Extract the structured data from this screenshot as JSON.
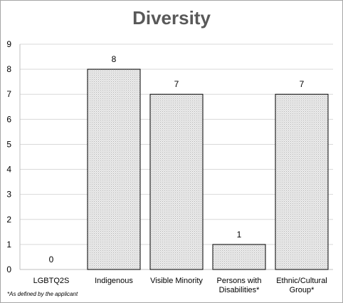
{
  "chart_data": {
    "type": "bar",
    "title": "Diversity",
    "categories": [
      [
        "LGBTQ2S"
      ],
      [
        "Indigenous"
      ],
      [
        "Visible Minority"
      ],
      [
        "Persons with",
        "Disabilities*"
      ],
      [
        "Ethnic/Cultural",
        "Group*"
      ]
    ],
    "values": [
      0,
      8,
      7,
      1,
      7
    ],
    "ylim": [
      0,
      9
    ],
    "yticks": [
      0,
      1,
      2,
      3,
      4,
      5,
      6,
      7,
      8,
      9
    ],
    "grid": true,
    "legend": "none",
    "bar_color": "#d9d9d9",
    "footnote": "*As defined by the applicant"
  }
}
